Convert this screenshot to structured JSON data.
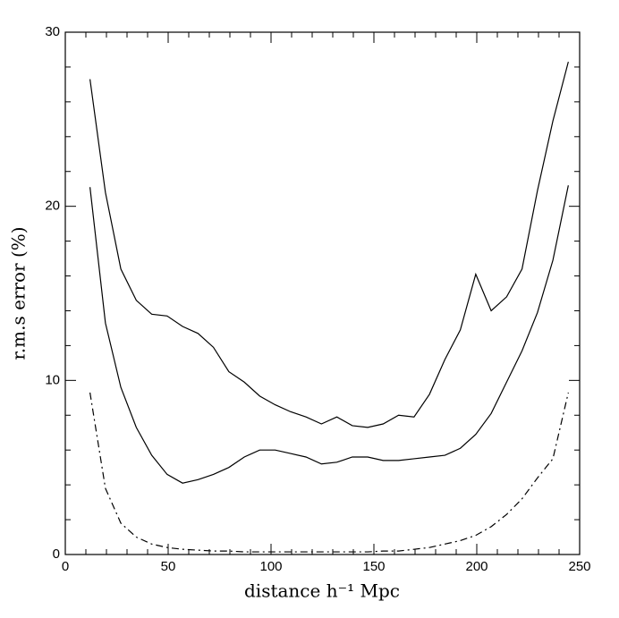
{
  "chart_data": {
    "type": "line",
    "xlabel": "distance  h⁻¹ Mpc",
    "ylabel": "r.m.s  error  (%)",
    "x": [
      12,
      19.5,
      27,
      34.5,
      42,
      49.5,
      57,
      64.5,
      72,
      79.5,
      87,
      94.5,
      102,
      109.5,
      117,
      124.5,
      132,
      139.5,
      147,
      154.5,
      162,
      169.5,
      177,
      184.5,
      192,
      199.5,
      207,
      214.5,
      222,
      229.5,
      237,
      244.5
    ],
    "series": [
      {
        "color": "#000000",
        "linestyle": "solid",
        "values": [
          27.3,
          20.8,
          16.4,
          14.6,
          13.8,
          13.7,
          13.1,
          12.7,
          11.9,
          10.5,
          9.9,
          9.1,
          8.6,
          8.2,
          7.9,
          7.5,
          7.9,
          7.4,
          7.3,
          7.5,
          8.0,
          7.9,
          9.2,
          11.2,
          12.9,
          16.1,
          14.0,
          14.8,
          16.4,
          20.9,
          24.9,
          28.3
        ]
      },
      {
        "color": "#000000",
        "linestyle": "solid",
        "values": [
          21.1,
          13.3,
          9.6,
          7.3,
          5.7,
          4.6,
          4.1,
          4.3,
          4.6,
          5.0,
          5.6,
          6.0,
          6.0,
          5.8,
          5.6,
          5.2,
          5.3,
          5.6,
          5.6,
          5.4,
          5.4,
          5.5,
          5.6,
          5.7,
          6.1,
          6.9,
          8.1,
          9.9,
          11.7,
          13.9,
          16.9,
          21.2
        ]
      },
      {
        "color": "#000000",
        "linestyle": "dashdot",
        "values": [
          9.3,
          3.8,
          1.8,
          1.0,
          0.6,
          0.4,
          0.3,
          0.25,
          0.2,
          0.2,
          0.15,
          0.15,
          0.15,
          0.15,
          0.15,
          0.15,
          0.15,
          0.15,
          0.15,
          0.2,
          0.2,
          0.3,
          0.4,
          0.6,
          0.8,
          1.1,
          1.6,
          2.3,
          3.2,
          4.4,
          5.5,
          9.3
        ]
      }
    ],
    "xlim": [
      0,
      250
    ],
    "ylim": [
      0,
      30
    ],
    "xticks": [
      0,
      50,
      100,
      150,
      200,
      250
    ],
    "yticks": [
      0,
      10,
      20,
      30
    ],
    "xminorticks": [
      10,
      20,
      30,
      40,
      60,
      70,
      80,
      90,
      110,
      120,
      130,
      140,
      160,
      170,
      180,
      190,
      210,
      220,
      230,
      240
    ],
    "yminorticks": [
      2,
      4,
      6,
      8,
      12,
      14,
      16,
      18,
      22,
      24,
      26,
      28
    ],
    "grid": false
  }
}
